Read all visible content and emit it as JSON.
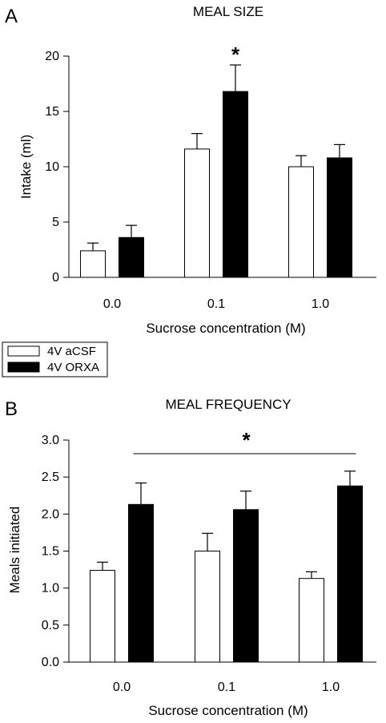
{
  "legend": {
    "items": [
      {
        "label": "4V aCSF",
        "color": "#ffffff"
      },
      {
        "label": "4V ORXA",
        "color": "#000000"
      }
    ]
  },
  "chart_data": [
    {
      "type": "bar",
      "panel": "A",
      "title": "MEAL SIZE",
      "xlabel": "Sucrose concentration (M)",
      "ylabel": "Intake (ml)",
      "categories": [
        "0.0",
        "0.1",
        "1.0"
      ],
      "ylim": [
        0,
        20
      ],
      "yticks": [
        "0",
        "5",
        "10",
        "15",
        "20"
      ],
      "series": [
        {
          "name": "4V aCSF",
          "color": "#ffffff",
          "values": [
            2.4,
            11.6,
            10.0
          ],
          "errors": [
            0.7,
            1.4,
            1.0
          ]
        },
        {
          "name": "4V ORXA",
          "color": "#000000",
          "values": [
            3.6,
            16.8,
            10.8
          ],
          "errors": [
            1.1,
            2.4,
            1.2
          ]
        }
      ],
      "annotations": [
        {
          "text": "*",
          "category": "0.1"
        }
      ]
    },
    {
      "type": "bar",
      "panel": "B",
      "title": "MEAL FREQUENCY",
      "xlabel": "Sucrose concentration (M)",
      "ylabel": "Meals initiated",
      "categories": [
        "0.0",
        "0.1",
        "1.0"
      ],
      "ylim": [
        0,
        3
      ],
      "yticks": [
        "0.0",
        "0.5",
        "1.0",
        "1.5",
        "2.0",
        "2.5",
        "3.0"
      ],
      "series": [
        {
          "name": "4V aCSF",
          "color": "#ffffff",
          "values": [
            1.24,
            1.5,
            1.13
          ],
          "errors": [
            0.11,
            0.24,
            0.09
          ]
        },
        {
          "name": "4V ORXA",
          "color": "#000000",
          "values": [
            2.13,
            2.06,
            2.38
          ],
          "errors": [
            0.29,
            0.25,
            0.2
          ]
        }
      ],
      "annotations": [
        {
          "text": "*",
          "span": [
            "0.0",
            "1.0"
          ]
        }
      ]
    }
  ]
}
